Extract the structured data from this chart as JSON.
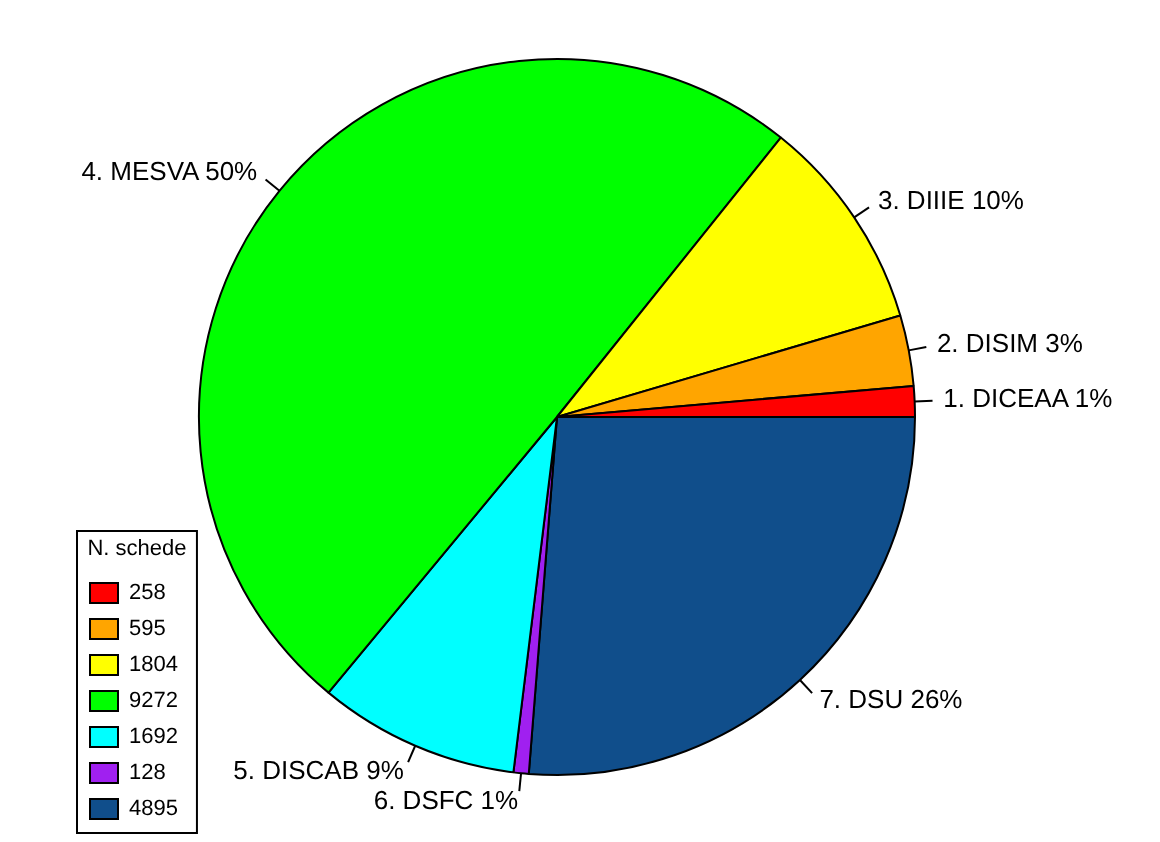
{
  "chart_data": {
    "type": "pie",
    "categories": [
      "258",
      "595",
      "1804",
      "9272",
      "1692",
      "128",
      "4895"
    ],
    "values": [
      258,
      595,
      1804,
      9272,
      1692,
      128,
      4895
    ],
    "annotations": [
      "1. DICEAA 1%",
      "2. DISIM 3%",
      "3. DIIIE 10%",
      "4. MESVA 50%",
      "5. DISCAB 9%",
      "6. DSFC 1%",
      "7. DSU 26%"
    ],
    "colors": [
      "#ff0000",
      "#ffa500",
      "#ffff00",
      "#00ff00",
      "#00ffff",
      "#a020f0",
      "#104e8b"
    ],
    "legend_title": "N. schede",
    "legend": "bottom left"
  }
}
